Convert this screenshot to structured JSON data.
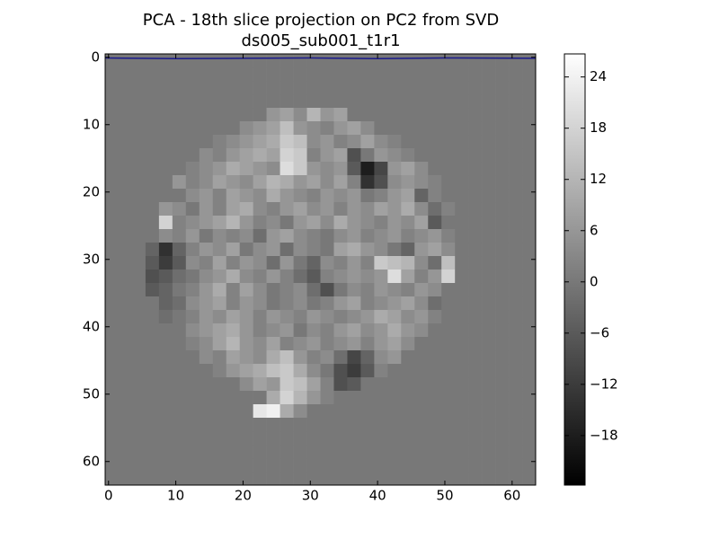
{
  "chart_data": {
    "type": "heatmap",
    "title": "PCA - 18th slice projection on PC2 from SVD",
    "subtitle": "ds005_sub001_t1r1",
    "xlim": [
      -0.5,
      63.5
    ],
    "ylim": [
      63.5,
      -0.5
    ],
    "xticks": [
      0,
      10,
      20,
      30,
      40,
      50,
      60
    ],
    "yticks": [
      0,
      10,
      20,
      30,
      40,
      50,
      60
    ],
    "x": [
      0.5,
      2.5,
      4.5,
      6.5,
      8.5,
      10.5,
      12.5,
      14.5,
      16.5,
      18.5,
      20.5,
      22.5,
      24.5,
      26.5,
      28.5,
      30.5,
      32.5,
      34.5,
      36.5,
      38.5,
      40.5,
      42.5,
      44.5,
      46.5,
      48.5,
      50.5,
      52.5,
      54.5,
      56.5,
      58.5,
      60.5,
      62.5
    ],
    "y": [
      0.5,
      2.5,
      4.5,
      6.5,
      8.5,
      10.5,
      12.5,
      14.5,
      16.5,
      18.5,
      20.5,
      22.5,
      24.5,
      26.5,
      28.5,
      30.5,
      32.5,
      34.5,
      36.5,
      38.5,
      40.5,
      42.5,
      44.5,
      46.5,
      48.5,
      50.5,
      52.5,
      54.5,
      56.5,
      58.5,
      60.5,
      62.5
    ],
    "zlim": [
      -23.8,
      26.7
    ],
    "zticks": [
      {
        "value": -18,
        "label": "−18"
      },
      {
        "value": -12,
        "label": "−12"
      },
      {
        "value": -6,
        "label": "−6"
      },
      0,
      6,
      12,
      18,
      24
    ],
    "colormap": "gray",
    "z": [
      [
        0,
        0,
        0,
        0,
        0,
        0,
        0,
        0,
        0,
        0,
        0,
        0,
        0,
        0,
        0,
        0,
        0,
        0,
        0,
        0,
        0,
        0,
        0,
        0,
        0,
        0,
        0,
        0,
        0,
        0,
        0,
        0
      ],
      [
        0,
        0,
        0,
        0,
        0,
        0,
        0,
        0,
        0,
        0,
        0,
        0,
        0,
        0,
        0,
        0,
        0,
        0,
        0,
        0,
        0,
        0,
        0,
        0,
        0,
        0,
        0,
        0,
        0,
        0,
        0,
        0
      ],
      [
        0,
        0,
        0,
        0,
        0,
        0,
        0,
        0,
        0,
        0,
        0,
        0,
        0,
        0,
        0,
        0,
        0,
        0,
        0,
        0,
        0,
        0,
        0,
        0,
        0,
        0,
        0,
        0,
        0,
        0,
        0,
        0
      ],
      [
        0,
        0,
        0,
        0,
        0,
        0,
        0,
        0,
        0,
        0,
        0,
        0,
        0,
        0,
        0,
        0,
        0,
        0,
        0,
        0,
        0,
        0,
        0,
        0,
        0,
        0,
        0,
        0,
        0,
        0,
        0,
        0
      ],
      [
        0,
        0,
        0,
        0,
        0,
        0,
        0,
        0,
        0,
        0,
        0,
        0,
        6,
        8,
        4,
        12,
        6,
        8,
        0,
        0,
        0,
        0,
        0,
        0,
        0,
        0,
        0,
        0,
        0,
        0,
        0,
        0
      ],
      [
        0,
        0,
        0,
        0,
        0,
        0,
        0,
        0,
        0,
        0,
        4,
        6,
        8,
        14,
        6,
        4,
        2,
        6,
        8,
        4,
        0,
        0,
        0,
        0,
        0,
        0,
        0,
        0,
        0,
        0,
        0,
        0
      ],
      [
        0,
        0,
        0,
        0,
        0,
        0,
        0,
        0,
        2,
        4,
        6,
        8,
        10,
        16,
        14,
        4,
        6,
        2,
        4,
        8,
        4,
        2,
        0,
        0,
        0,
        0,
        0,
        0,
        0,
        0,
        0,
        0
      ],
      [
        0,
        0,
        0,
        0,
        0,
        0,
        0,
        4,
        2,
        6,
        8,
        10,
        8,
        18,
        16,
        2,
        6,
        8,
        -8,
        0,
        6,
        4,
        2,
        0,
        0,
        0,
        0,
        0,
        0,
        0,
        0,
        0
      ],
      [
        0,
        0,
        0,
        0,
        0,
        0,
        2,
        4,
        6,
        10,
        8,
        6,
        4,
        20,
        16,
        6,
        4,
        6,
        -6,
        -18,
        -10,
        6,
        8,
        4,
        0,
        0,
        0,
        0,
        0,
        0,
        0,
        0
      ],
      [
        0,
        0,
        0,
        0,
        0,
        6,
        2,
        4,
        8,
        6,
        4,
        8,
        12,
        10,
        6,
        8,
        4,
        8,
        2,
        -14,
        -8,
        4,
        6,
        4,
        2,
        0,
        0,
        0,
        0,
        0,
        0,
        0
      ],
      [
        0,
        0,
        0,
        0,
        0,
        0,
        4,
        6,
        2,
        8,
        6,
        4,
        10,
        6,
        4,
        2,
        6,
        4,
        6,
        0,
        2,
        6,
        8,
        -4,
        2,
        0,
        0,
        0,
        0,
        0,
        0,
        0
      ],
      [
        0,
        0,
        0,
        0,
        6,
        4,
        0,
        6,
        2,
        8,
        10,
        4,
        2,
        6,
        8,
        4,
        6,
        2,
        6,
        4,
        8,
        6,
        10,
        4,
        -2,
        2,
        0,
        0,
        0,
        0,
        0,
        0
      ],
      [
        0,
        0,
        0,
        0,
        18,
        2,
        4,
        6,
        8,
        12,
        6,
        2,
        4,
        0,
        6,
        8,
        4,
        10,
        6,
        4,
        2,
        6,
        4,
        8,
        -6,
        0,
        0,
        0,
        0,
        0,
        0,
        0
      ],
      [
        0,
        0,
        0,
        0,
        4,
        2,
        6,
        0,
        4,
        2,
        4,
        -2,
        6,
        8,
        4,
        2,
        0,
        4,
        6,
        2,
        4,
        6,
        2,
        4,
        6,
        2,
        0,
        0,
        0,
        0,
        0,
        0
      ],
      [
        0,
        0,
        0,
        -4,
        -14,
        -4,
        2,
        6,
        4,
        8,
        0,
        4,
        6,
        -2,
        4,
        2,
        0,
        8,
        10,
        6,
        4,
        0,
        -4,
        6,
        8,
        4,
        0,
        0,
        0,
        0,
        0,
        0
      ],
      [
        0,
        0,
        0,
        -6,
        -12,
        -6,
        4,
        2,
        8,
        2,
        6,
        4,
        -2,
        6,
        0,
        -4,
        4,
        2,
        6,
        2,
        16,
        14,
        12,
        4,
        -2,
        14,
        0,
        0,
        0,
        0,
        0,
        0
      ],
      [
        0,
        0,
        0,
        -8,
        -6,
        -2,
        0,
        4,
        6,
        10,
        4,
        2,
        6,
        2,
        -2,
        -6,
        2,
        4,
        6,
        4,
        6,
        20,
        8,
        2,
        6,
        18,
        0,
        0,
        0,
        0,
        0,
        0
      ],
      [
        0,
        0,
        0,
        -6,
        -4,
        0,
        2,
        6,
        10,
        2,
        8,
        4,
        0,
        2,
        4,
        -2,
        -8,
        0,
        4,
        2,
        6,
        4,
        2,
        6,
        4,
        0,
        0,
        0,
        0,
        0,
        0,
        0
      ],
      [
        0,
        0,
        0,
        0,
        -4,
        -2,
        4,
        6,
        8,
        2,
        6,
        4,
        0,
        2,
        4,
        0,
        2,
        6,
        8,
        2,
        4,
        6,
        8,
        4,
        -2,
        0,
        0,
        0,
        0,
        0,
        0,
        0
      ],
      [
        0,
        0,
        0,
        0,
        -2,
        0,
        2,
        6,
        4,
        8,
        6,
        2,
        6,
        4,
        2,
        6,
        4,
        2,
        4,
        6,
        10,
        8,
        4,
        6,
        2,
        0,
        0,
        0,
        0,
        0,
        0,
        0
      ],
      [
        0,
        0,
        0,
        0,
        0,
        0,
        4,
        6,
        8,
        10,
        6,
        2,
        4,
        6,
        0,
        4,
        2,
        6,
        8,
        4,
        6,
        10,
        6,
        4,
        0,
        0,
        0,
        0,
        0,
        0,
        0,
        0
      ],
      [
        0,
        0,
        0,
        0,
        0,
        0,
        2,
        4,
        8,
        12,
        6,
        4,
        8,
        2,
        4,
        6,
        2,
        4,
        6,
        2,
        6,
        8,
        4,
        0,
        0,
        0,
        0,
        0,
        0,
        0,
        0,
        0
      ],
      [
        0,
        0,
        0,
        0,
        0,
        0,
        0,
        4,
        2,
        8,
        6,
        4,
        10,
        14,
        6,
        2,
        4,
        -2,
        -10,
        -4,
        4,
        6,
        0,
        0,
        0,
        0,
        0,
        0,
        0,
        0,
        0,
        0
      ],
      [
        0,
        0,
        0,
        0,
        0,
        0,
        0,
        0,
        2,
        6,
        8,
        10,
        14,
        16,
        10,
        4,
        0,
        -8,
        -12,
        -6,
        2,
        0,
        0,
        0,
        0,
        0,
        0,
        0,
        0,
        0,
        0,
        0
      ],
      [
        0,
        0,
        0,
        0,
        0,
        0,
        0,
        0,
        0,
        0,
        4,
        8,
        6,
        16,
        14,
        8,
        2,
        -8,
        -6,
        0,
        0,
        0,
        0,
        0,
        0,
        0,
        0,
        0,
        0,
        0,
        0,
        0
      ],
      [
        0,
        0,
        0,
        0,
        0,
        0,
        0,
        0,
        0,
        0,
        0,
        0,
        10,
        18,
        12,
        6,
        2,
        0,
        0,
        0,
        0,
        0,
        0,
        0,
        0,
        0,
        0,
        0,
        0,
        0,
        0,
        0
      ],
      [
        0,
        0,
        0,
        0,
        0,
        0,
        0,
        0,
        0,
        0,
        0,
        22,
        24,
        10,
        4,
        0,
        0,
        0,
        0,
        0,
        0,
        0,
        0,
        0,
        0,
        0,
        0,
        0,
        0,
        0,
        0,
        0
      ],
      [
        0,
        0,
        0,
        0,
        0,
        0,
        0,
        0,
        0,
        0,
        0,
        0,
        0,
        0,
        0,
        0,
        0,
        0,
        0,
        0,
        0,
        0,
        0,
        0,
        0,
        0,
        0,
        0,
        0,
        0,
        0,
        0
      ],
      [
        0,
        0,
        0,
        0,
        0,
        0,
        0,
        0,
        0,
        0,
        0,
        0,
        0,
        0,
        0,
        0,
        0,
        0,
        0,
        0,
        0,
        0,
        0,
        0,
        0,
        0,
        0,
        0,
        0,
        0,
        0,
        0
      ],
      [
        0,
        0,
        0,
        0,
        0,
        0,
        0,
        0,
        0,
        0,
        0,
        0,
        0,
        0,
        0,
        0,
        0,
        0,
        0,
        0,
        0,
        0,
        0,
        0,
        0,
        0,
        0,
        0,
        0,
        0,
        0,
        0
      ],
      [
        0,
        0,
        0,
        0,
        0,
        0,
        0,
        0,
        0,
        0,
        0,
        0,
        0,
        0,
        0,
        0,
        0,
        0,
        0,
        0,
        0,
        0,
        0,
        0,
        0,
        0,
        0,
        0,
        0,
        0,
        0,
        0
      ],
      [
        0,
        0,
        0,
        0,
        0,
        0,
        0,
        0,
        0,
        0,
        0,
        0,
        0,
        0,
        0,
        0,
        0,
        0,
        0,
        0,
        0,
        0,
        0,
        0,
        0,
        0,
        0,
        0,
        0,
        0,
        0,
        0
      ]
    ],
    "line": {
      "color": "#1a1a8c",
      "x": [
        -0.5,
        10,
        20,
        30,
        40,
        50,
        63.5
      ],
      "values": [
        0.1,
        0.2,
        0.15,
        0.1,
        0.2,
        0.1,
        0.15
      ]
    }
  }
}
